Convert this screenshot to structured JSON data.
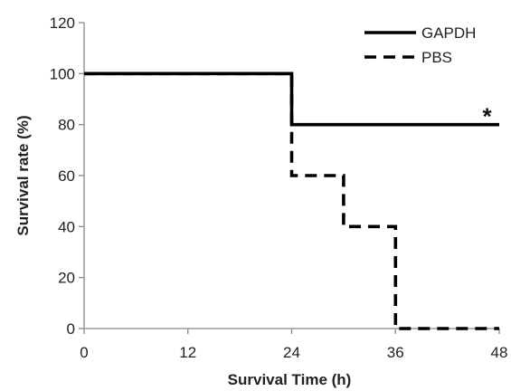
{
  "chart_data": {
    "type": "line",
    "title": "",
    "xlabel": "Survival Time (h)",
    "ylabel": "Survival rate (%)",
    "xlim": [
      0,
      48
    ],
    "ylim": [
      0,
      120
    ],
    "xticks": [
      0,
      12,
      24,
      36,
      48
    ],
    "yticks": [
      0,
      20,
      40,
      60,
      80,
      100,
      120
    ],
    "grid": false,
    "legend_position": "top-right",
    "series": [
      {
        "name": "GAPDH",
        "style": "solid",
        "color": "#000000",
        "x": [
          0,
          24,
          24,
          48
        ],
        "y": [
          100,
          100,
          80,
          80
        ]
      },
      {
        "name": "PBS",
        "style": "dashed",
        "color": "#000000",
        "x": [
          0,
          24,
          24,
          30,
          30,
          36,
          36,
          48
        ],
        "y": [
          100,
          100,
          60,
          60,
          40,
          40,
          0,
          0
        ]
      }
    ],
    "annotations": [
      {
        "text": "*",
        "x": 46.6,
        "y": 85
      }
    ]
  }
}
